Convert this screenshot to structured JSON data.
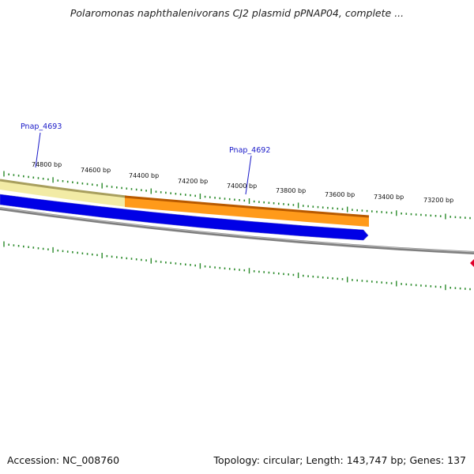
{
  "title": "Polaromonas naphthalenivorans CJ2 plasmid pPNAP04, complete ...",
  "footer": {
    "accession": "Accession: NC_008760",
    "summary": "Topology: circular; Length: 143,747 bp; Genes: 137"
  },
  "colors": {
    "backbone": "#7f7f7f",
    "cds_blue": "#0000e6",
    "gene_orange": "#ff8c00",
    "gene_pale_yellow": "#f2eba5",
    "tick_green": "#2a8a2a",
    "gene_label_blue": "#1a1ac8",
    "marker_red": "#e0002a"
  },
  "ruler_labels": [
    "74800 bp",
    "74600 bp",
    "74400 bp",
    "74200 bp",
    "74000 bp",
    "73800 bp",
    "73600 bp",
    "73400 bp",
    "73200 bp"
  ],
  "genes": [
    {
      "name": "Pnap_4693",
      "color": "pale-yellow",
      "strand": "forward"
    },
    {
      "name": "Pnap_4692",
      "color": "orange",
      "strand": "forward"
    }
  ],
  "cds": [
    {
      "strand": "reverse",
      "color": "blue",
      "direction": "right"
    }
  ]
}
